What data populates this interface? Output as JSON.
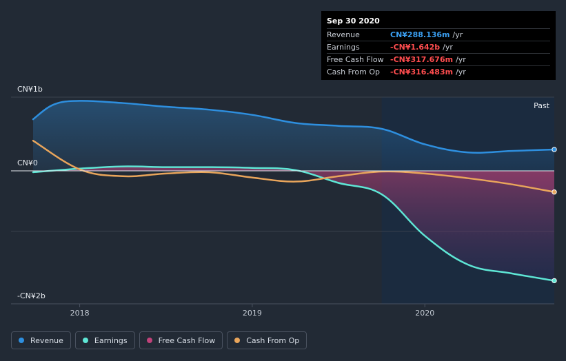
{
  "tooltip": {
    "date": "Sep 30 2020",
    "rows": [
      {
        "label": "Revenue",
        "value": "CN¥288.136m",
        "unit": "/yr",
        "color": "#3a9ef0"
      },
      {
        "label": "Earnings",
        "value": "-CN¥1.642b",
        "unit": "/yr",
        "color": "#ff4d4f"
      },
      {
        "label": "Free Cash Flow",
        "value": "-CN¥317.676m",
        "unit": "/yr",
        "color": "#ff4d4f"
      },
      {
        "label": "Cash From Op",
        "value": "-CN¥316.483m",
        "unit": "/yr",
        "color": "#ff4d4f"
      }
    ]
  },
  "legend": [
    {
      "label": "Revenue",
      "color": "#2e8fdf"
    },
    {
      "label": "Earnings",
      "color": "#5ee6d5"
    },
    {
      "label": "Free Cash Flow",
      "color": "#c0427a"
    },
    {
      "label": "Cash From Op",
      "color": "#e9a55b"
    }
  ],
  "chart_data": {
    "type": "line",
    "title": "",
    "unit": "CN¥ billions",
    "y_ticks": [
      {
        "value": 1.0,
        "label": "CN¥1b"
      },
      {
        "value": 0.0,
        "label": "CN¥0"
      },
      {
        "value": -1.8,
        "label": "-CN¥2b"
      }
    ],
    "ylim": [
      -1.8,
      1.0
    ],
    "xlim": [
      2017.73,
      2020.75
    ],
    "x_ticks": [
      {
        "value": 2018.0,
        "label": "2018"
      },
      {
        "value": 2019.0,
        "label": "2019"
      },
      {
        "value": 2020.0,
        "label": "2020"
      }
    ],
    "past_start": 2019.75,
    "past_label": "Past",
    "series": [
      {
        "name": "Revenue",
        "color": "#2e8fdf",
        "fill": true,
        "x": [
          2017.73,
          2017.85,
          2018.0,
          2018.25,
          2018.5,
          2018.75,
          2019.0,
          2019.25,
          2019.5,
          2019.75,
          2020.0,
          2020.25,
          2020.5,
          2020.75
        ],
        "y": [
          0.7,
          0.9,
          0.95,
          0.92,
          0.87,
          0.83,
          0.76,
          0.65,
          0.61,
          0.57,
          0.36,
          0.25,
          0.27,
          0.29
        ]
      },
      {
        "name": "Earnings",
        "color": "#5ee6d5",
        "fill": true,
        "x": [
          2017.73,
          2018.0,
          2018.25,
          2018.5,
          2018.75,
          2019.0,
          2019.25,
          2019.5,
          2019.75,
          2020.0,
          2020.25,
          2020.5,
          2020.75
        ],
        "y": [
          -0.02,
          0.03,
          0.06,
          0.05,
          0.05,
          0.04,
          0.01,
          -0.18,
          -0.35,
          -0.97,
          -1.4,
          -1.53,
          -1.64
        ]
      },
      {
        "name": "Free Cash Flow",
        "color": "#c0427a",
        "fill": true,
        "x": [
          2019.75,
          2020.0,
          2020.25,
          2020.5,
          2020.75
        ],
        "y": [
          -0.01,
          -0.04,
          -0.11,
          -0.2,
          -0.318
        ]
      },
      {
        "name": "Cash From Op",
        "color": "#e9a55b",
        "fill": false,
        "x": [
          2017.73,
          2018.0,
          2018.25,
          2018.5,
          2018.75,
          2019.0,
          2019.25,
          2019.5,
          2019.75,
          2020.0,
          2020.25,
          2020.5,
          2020.75
        ],
        "y": [
          0.41,
          0.02,
          -0.08,
          -0.04,
          -0.02,
          -0.1,
          -0.16,
          -0.08,
          -0.01,
          -0.04,
          -0.11,
          -0.2,
          -0.316
        ]
      }
    ]
  }
}
